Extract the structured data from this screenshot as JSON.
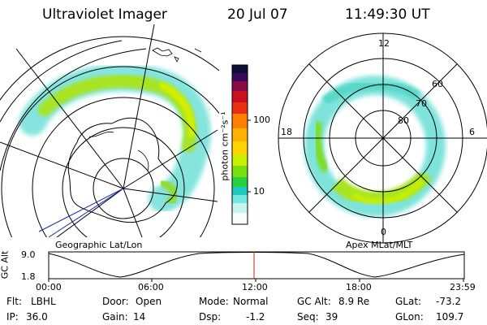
{
  "header": {
    "title": "Ultraviolet Imager",
    "date": "20 Jul 07",
    "time": "11:49:30 UT"
  },
  "left_panel": {
    "label": "Geographic Lat/Lon"
  },
  "colorbar": {
    "unit": "photon cm⁻²s⁻¹",
    "tick_100": "100",
    "tick_10": "10",
    "colors": [
      "#0d0d3a",
      "#3a0a5a",
      "#8a0a46",
      "#c81020",
      "#f04010",
      "#ff9800",
      "#ffd400",
      "#c8f000",
      "#78e010",
      "#2ad040",
      "#20c8c0",
      "#70e8e0",
      "#c8f4f0",
      "#f4fbfb"
    ]
  },
  "right_panel": {
    "label": "Apex MLat/MLT",
    "mlt_12": "12",
    "mlt_18": "18",
    "mlt_6": "6",
    "mlt_0": "0",
    "lat_60": "60",
    "lat_70": "70",
    "lat_80": "80"
  },
  "altitude_plot": {
    "ylabel": "GC Alt",
    "ytick_top": "9.0",
    "ytick_bottom": "1.8",
    "xticks": [
      "00:00",
      "06:00",
      "12:00",
      "18:00",
      "23:59"
    ]
  },
  "status": {
    "flt_label": "Flt:",
    "flt_value": "LBHL",
    "ip_label": "IP:",
    "ip_value": "36.0",
    "door_label": "Door:",
    "door_value": "Open",
    "gain_label": "Gain:",
    "gain_value": "14",
    "mode_label": "Mode:",
    "mode_value": "Normal",
    "dsp_label": "Dsp:",
    "dsp_value": "-1.2",
    "gcalt_label": "GC Alt:",
    "gcalt_value": "8.9 Re",
    "seq_label": "Seq:",
    "seq_value": "39",
    "glat_label": "GLat:",
    "glat_value": "-73.2",
    "glon_label": "GLon:",
    "glon_value": "109.7"
  },
  "colors": {
    "current_time_marker": "#cc2200",
    "track_line": "#1a2aa0",
    "aurora_green": "#8ed820",
    "aurora_cyan": "#5fd8d0"
  }
}
